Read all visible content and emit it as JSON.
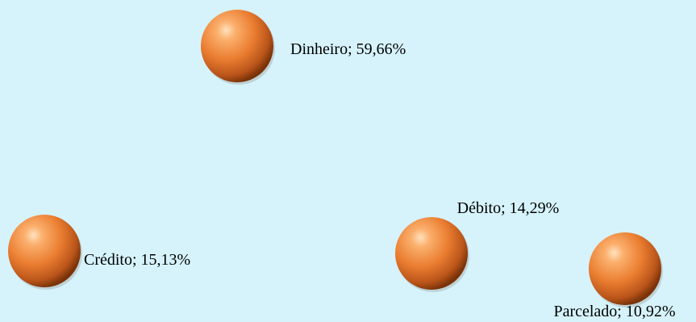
{
  "chart_data": {
    "type": "scatter",
    "title": "",
    "xlabel": "",
    "ylabel": "",
    "grid": false,
    "legend": "none",
    "points": [
      {
        "category": "Dinheiro",
        "label": "Dinheiro; 59,66%",
        "value": 59.66
      },
      {
        "category": "Crédito",
        "label": "Crédito; 15,13%",
        "value": 15.13
      },
      {
        "category": "Débito",
        "label": "Débito; 14,29%",
        "value": 14.29
      },
      {
        "category": "Parcelado",
        "label": "Parcelado; 10,92%",
        "value": 10.92
      }
    ]
  },
  "colors": {
    "background": "#d6f3fc",
    "marker_highlight": "#ffd7a8",
    "marker_mid": "#f08a3c",
    "marker_shadow": "#8a3a0c"
  }
}
